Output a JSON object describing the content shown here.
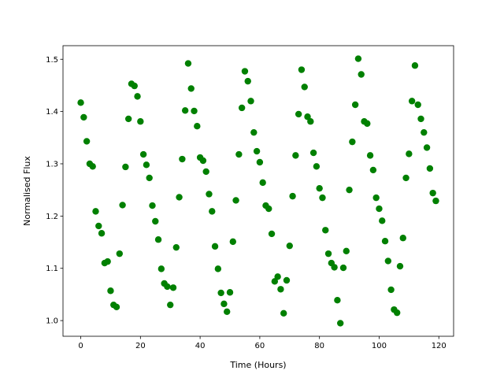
{
  "chart_data": {
    "type": "scatter",
    "x_label": "Time (Hours)",
    "y_label": "Normalised Flux",
    "color": "#008000",
    "x": [
      0,
      1,
      2,
      3,
      4,
      5,
      6,
      7,
      8,
      9,
      10,
      11,
      12,
      13,
      14,
      15,
      16,
      17,
      18,
      19,
      20,
      21,
      22,
      23,
      24,
      25,
      26,
      27,
      28,
      29,
      30,
      31,
      32,
      33,
      34,
      35,
      36,
      37,
      38,
      39,
      40,
      41,
      42,
      43,
      44,
      45,
      46,
      47,
      48,
      49,
      50,
      51,
      52,
      53,
      54,
      55,
      56,
      57,
      58,
      59,
      60,
      61,
      62,
      63,
      64,
      65,
      66,
      67,
      68,
      69,
      70,
      71,
      72,
      73,
      74,
      75,
      76,
      77,
      78,
      79,
      80,
      81,
      82,
      83,
      84,
      85,
      86,
      87,
      88,
      89,
      90,
      91,
      92,
      93,
      94,
      95,
      96,
      97,
      98,
      99,
      100,
      101,
      102,
      103,
      104,
      105,
      106,
      107,
      108,
      109,
      110,
      111,
      112,
      113,
      114,
      115,
      116,
      117,
      118,
      119
    ],
    "values": [
      1.417,
      1.389,
      1.343,
      1.3,
      1.295,
      1.209,
      1.181,
      1.167,
      1.11,
      1.113,
      1.057,
      1.03,
      1.026,
      1.128,
      1.221,
      1.294,
      1.386,
      1.453,
      1.449,
      1.429,
      1.381,
      1.318,
      1.298,
      1.273,
      1.22,
      1.19,
      1.155,
      1.099,
      1.071,
      1.065,
      1.03,
      1.063,
      1.14,
      1.236,
      1.309,
      1.402,
      1.492,
      1.444,
      1.401,
      1.372,
      1.312,
      1.306,
      1.285,
      1.242,
      1.209,
      1.142,
      1.099,
      1.053,
      1.032,
      1.017,
      1.054,
      1.151,
      1.23,
      1.318,
      1.407,
      1.477,
      1.458,
      1.42,
      1.36,
      1.324,
      1.303,
      1.264,
      1.22,
      1.214,
      1.166,
      1.075,
      1.084,
      1.06,
      1.014,
      1.077,
      1.143,
      1.238,
      1.316,
      1.395,
      1.48,
      1.447,
      1.39,
      1.381,
      1.321,
      1.295,
      1.253,
      1.235,
      1.173,
      1.128,
      1.11,
      1.102,
      1.039,
      0.995,
      1.101,
      1.133,
      1.25,
      1.342,
      1.413,
      1.501,
      1.471,
      1.381,
      1.377,
      1.316,
      1.288,
      1.235,
      1.214,
      1.191,
      1.152,
      1.114,
      1.059,
      1.021,
      1.015,
      1.104,
      1.158,
      1.273,
      1.319,
      1.42,
      1.488,
      1.413,
      1.386,
      1.36,
      1.331,
      1.291,
      1.244,
      1.229
    ],
    "xlim": [
      -5.95,
      124.95
    ],
    "ylim": [
      0.97,
      1.526
    ],
    "xticks": [
      0,
      20,
      40,
      60,
      80,
      100,
      120
    ],
    "yticks": [
      {
        "value": 1,
        "label": "1.0"
      },
      1.1,
      1.2,
      1.3,
      1.4,
      1.5
    ]
  }
}
